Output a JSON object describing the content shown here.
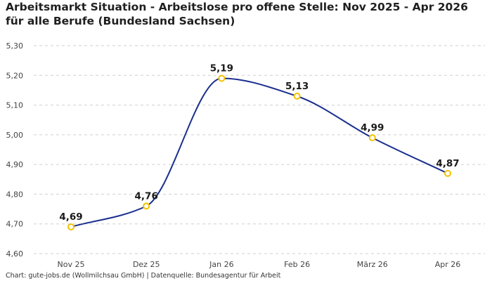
{
  "chart_data": {
    "type": "line",
    "title": "Arbeitsmarkt Situation - Arbeitslose pro offene Stelle: Nov 2025 - Apr 2026 für alle Berufe (Bundesland Sachsen)",
    "categories": [
      "Nov 25",
      "Dez 25",
      "Jan 26",
      "Feb 26",
      "März 26",
      "Apr 26"
    ],
    "series": [
      {
        "values": [
          4.69,
          4.76,
          5.19,
          5.13,
          4.99,
          4.87
        ],
        "labels": [
          "4,69",
          "4,76",
          "5,19",
          "5,13",
          "4,99",
          "4,87"
        ]
      }
    ],
    "yticks": [
      "4,60",
      "4,70",
      "4,80",
      "4,90",
      "5,00",
      "5,10",
      "5,20",
      "5,30"
    ],
    "ytick_values": [
      4.6,
      4.7,
      4.8,
      4.9,
      5.0,
      5.1,
      5.2,
      5.3
    ],
    "ylim": [
      4.6,
      5.3
    ],
    "grid": true,
    "line_color": "#1a2f8f",
    "marker_color": "#f2c200",
    "source": "Chart: gute-jobs.de (Wollmilchsau GmbH) | Datenquelle: Bundesagentur für Arbeit"
  }
}
